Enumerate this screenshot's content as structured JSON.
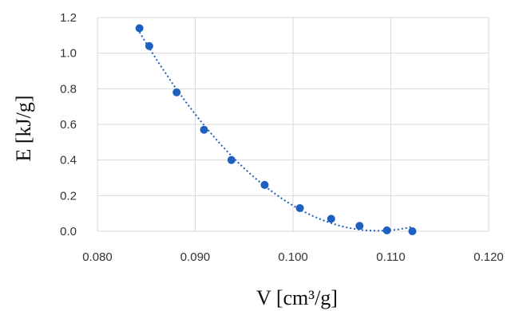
{
  "chart_data": {
    "type": "scatter",
    "title": "",
    "xlabel": "V [cm³/g]",
    "ylabel": "E [kJ/g]",
    "xlim": [
      0.08,
      0.12
    ],
    "ylim": [
      0.0,
      1.2
    ],
    "grid": true,
    "legend": "none",
    "x_ticks": [
      "0.080",
      "0.090",
      "0.100",
      "0.110",
      "0.120"
    ],
    "y_ticks": [
      "0.0",
      "0.2",
      "0.4",
      "0.6",
      "0.8",
      "1.0",
      "1.2"
    ],
    "series": [
      {
        "color": "#1f5fbf",
        "trendline": "polynomial",
        "trendline_style": "dotted",
        "x": [
          0.0843,
          0.0853,
          0.0881,
          0.0909,
          0.0937,
          0.0971,
          0.1007,
          0.1039,
          0.1068,
          0.1096,
          0.1122
        ],
        "y": [
          1.14,
          1.04,
          0.78,
          0.57,
          0.4,
          0.26,
          0.13,
          0.07,
          0.03,
          0.005,
          0.0
        ]
      }
    ]
  }
}
